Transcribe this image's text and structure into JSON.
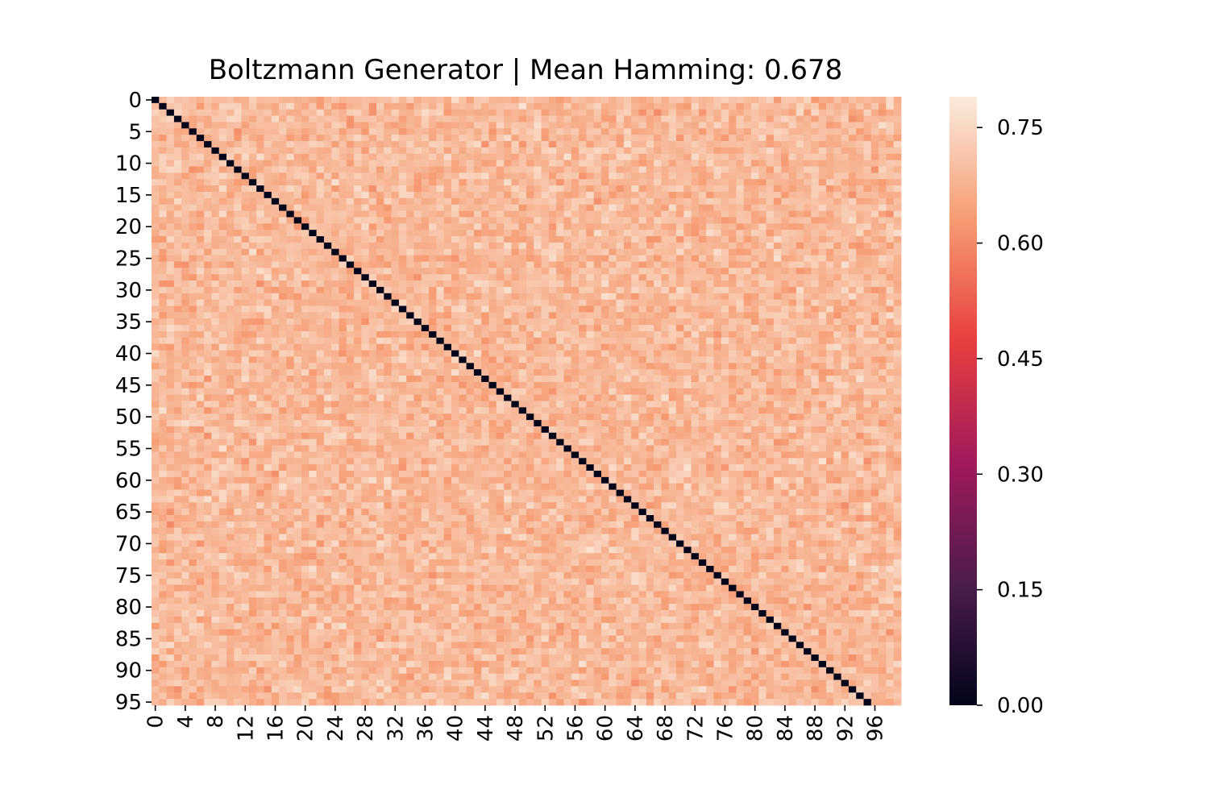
{
  "chart_data": {
    "type": "heatmap",
    "title": "Boltzmann Generator | Mean Hamming: 0.678",
    "xlabel": "",
    "ylabel": "",
    "n_rows": 96,
    "n_cols": 100,
    "row_tick_labels": [
      "0",
      "5",
      "10",
      "15",
      "20",
      "25",
      "30",
      "35",
      "40",
      "45",
      "50",
      "55",
      "60",
      "65",
      "70",
      "75",
      "80",
      "85",
      "90",
      "95"
    ],
    "row_tick_step": 5,
    "col_tick_labels": [
      "0",
      "4",
      "8",
      "12",
      "16",
      "20",
      "24",
      "28",
      "32",
      "36",
      "40",
      "44",
      "48",
      "52",
      "56",
      "60",
      "64",
      "68",
      "72",
      "76",
      "80",
      "84",
      "88",
      "92",
      "96"
    ],
    "col_tick_step": 4,
    "value_range": [
      0.0,
      0.79
    ],
    "diagonal_value": 0.0,
    "off_diagonal_mean": 0.678,
    "off_diagonal_spread": [
      0.6,
      0.78
    ],
    "colormap": "rocket",
    "colormap_stops": [
      "#03051a",
      "#4c1d4b",
      "#a11a5b",
      "#e83f3f",
      "#f69c73",
      "#faebdd"
    ],
    "colorbar": {
      "ticks": [
        0.0,
        0.15,
        0.3,
        0.45,
        0.6,
        0.75
      ],
      "tick_labels": [
        "0.00",
        "0.15",
        "0.30",
        "0.45",
        "0.60",
        "0.75"
      ],
      "placement": "right"
    }
  }
}
